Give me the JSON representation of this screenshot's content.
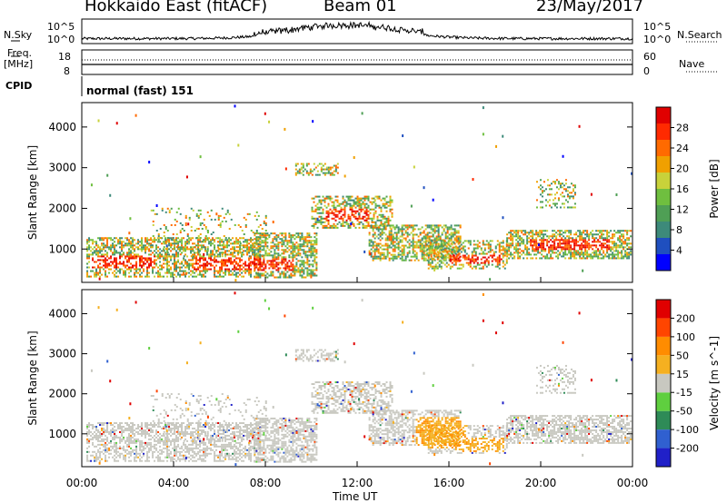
{
  "header": {
    "radar": "Hokkaido East (fitACF)",
    "beam": "Beam 01",
    "date": "23/May/2017"
  },
  "nsky": {
    "label": "N.Sky",
    "tick_top": "10^5",
    "tick_bottom": "10^0",
    "right_label": "N.Search",
    "right_tick_top": "10^5",
    "right_tick_bottom": "10^0"
  },
  "freq": {
    "label_line1": "Freq.",
    "label_line2": "[MHz]",
    "tick_top": "18",
    "tick_bottom": "8",
    "right_label": "Nave",
    "right_tick_top": "60",
    "right_tick_bottom": "0"
  },
  "cpid": {
    "label": "CPID",
    "value": "normal (fast) 151"
  },
  "power_panel": {
    "ylabel": "Slant Range [km]",
    "yticks": [
      "1000",
      "2000",
      "3000",
      "4000"
    ],
    "colorbar_label": "Power [dB]",
    "colorbar_ticks": [
      "4",
      "8",
      "12",
      "16",
      "20",
      "24",
      "28"
    ],
    "colors": [
      "#0000ff",
      "#1f4fbf",
      "#3d8a7a",
      "#4f9f55",
      "#6fbf3f",
      "#c8d23a",
      "#f0a000",
      "#ff6a00",
      "#ff2a00",
      "#e00000"
    ]
  },
  "velocity_panel": {
    "ylabel": "Slant Range [km]",
    "yticks": [
      "1000",
      "2000",
      "3000",
      "4000"
    ],
    "colorbar_label": "Velocity [m s^-1]",
    "colorbar_ticks": [
      "200",
      "100",
      "50",
      "15",
      "-15",
      "-50",
      "-100",
      "-200"
    ],
    "colors": [
      "#2020c8",
      "#3060d0",
      "#2e8b57",
      "#5fcf3f",
      "#c8c8c0",
      "#f5b020",
      "#ff8c00",
      "#ff4500",
      "#e00000"
    ]
  },
  "xaxis": {
    "label": "Time UT",
    "ticks": [
      "00:00",
      "04:00",
      "08:00",
      "12:00",
      "16:00",
      "20:00",
      "00:00"
    ]
  },
  "chart_data": {
    "type": "heatmap",
    "x_range_hours": [
      0,
      24
    ],
    "y_range_km": [
      180,
      4600
    ],
    "power_range_db": [
      0,
      30
    ],
    "velocity_range_ms": [
      -250,
      250
    ]
  }
}
